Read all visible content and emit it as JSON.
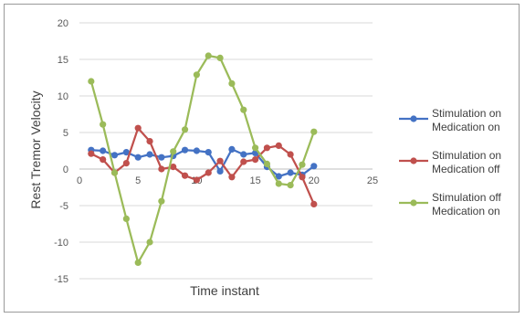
{
  "chart_data": {
    "type": "line",
    "title": "",
    "xlabel": "Time instant",
    "ylabel": "Rest Tremor Velocity",
    "xlim": [
      0,
      25
    ],
    "ylim": [
      -15,
      20
    ],
    "x_ticks": [
      "0",
      "5",
      "10",
      "15",
      "20",
      "25"
    ],
    "y_ticks": [
      "20",
      "15",
      "10",
      "5",
      "0",
      "-5",
      "-10",
      "-15"
    ],
    "grid": "horizontal",
    "legend_position": "right",
    "x": [
      1,
      2,
      3,
      4,
      5,
      6,
      7,
      8,
      9,
      10,
      11,
      12,
      13,
      14,
      15,
      16,
      17,
      18,
      19,
      20
    ],
    "series": [
      {
        "name_line1": "Stimulation on",
        "name_line2": "Medication on",
        "color": "#4472c4",
        "values": [
          2.6,
          2.5,
          1.9,
          2.3,
          1.6,
          2.0,
          1.6,
          1.8,
          2.6,
          2.5,
          2.3,
          -0.3,
          2.7,
          2.0,
          2.2,
          0.3,
          -1.0,
          -0.5,
          -0.8,
          0.4
        ]
      },
      {
        "name_line1": "Stimulation on",
        "name_line2": "Medication off",
        "color": "#c0504d",
        "values": [
          2.1,
          1.3,
          -0.5,
          0.8,
          5.6,
          3.8,
          0.0,
          0.3,
          -0.9,
          -1.5,
          -0.5,
          1.1,
          -1.1,
          1.0,
          1.3,
          2.9,
          3.2,
          2.0,
          -1.1,
          -4.8
        ]
      },
      {
        "name_line1": "Stimulation off",
        "name_line2": "Medication on",
        "color": "#9bbb59",
        "values": [
          12.0,
          6.1,
          -0.5,
          -6.8,
          -12.8,
          -10.0,
          -4.4,
          2.4,
          5.4,
          12.9,
          15.5,
          15.2,
          11.7,
          8.1,
          2.9,
          0.7,
          -2.0,
          -2.2,
          0.6,
          5.1
        ]
      }
    ]
  }
}
